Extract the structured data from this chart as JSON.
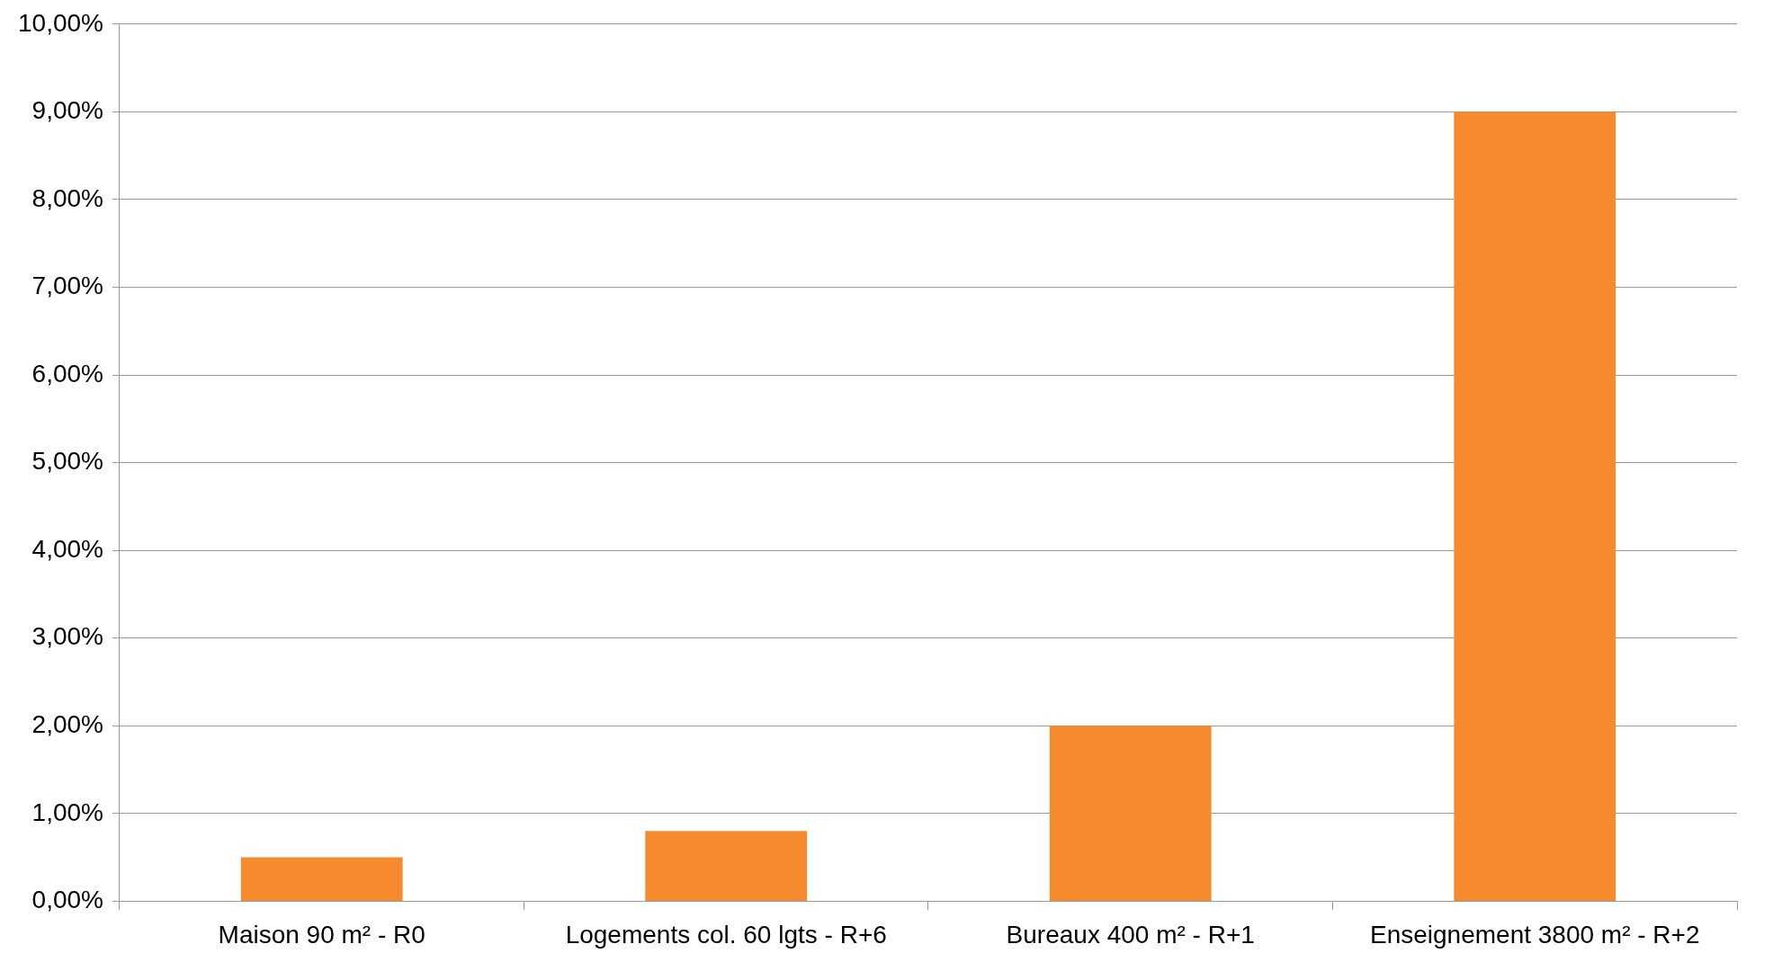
{
  "chart_data": {
    "type": "bar",
    "categories": [
      "Maison 90 m² - R0",
      "Logements col. 60 lgts - R+6",
      "Bureaux 400 m² - R+1",
      "Enseignement 3800 m² - R+2"
    ],
    "values": [
      0.5,
      0.8,
      2.0,
      9.0
    ],
    "color": "#f58b2e",
    "ylim": [
      0,
      10
    ],
    "yticks": [
      {
        "value": 0,
        "label": "0,00%"
      },
      {
        "value": 1,
        "label": "1,00%"
      },
      {
        "value": 2,
        "label": "2,00%"
      },
      {
        "value": 3,
        "label": "3,00%"
      },
      {
        "value": 4,
        "label": "4,00%"
      },
      {
        "value": 5,
        "label": "5,00%"
      },
      {
        "value": 6,
        "label": "6,00%"
      },
      {
        "value": 7,
        "label": "7,00%"
      },
      {
        "value": 8,
        "label": "8,00%"
      },
      {
        "value": 9,
        "label": "9,00%"
      },
      {
        "value": 10,
        "label": "10,00%"
      }
    ],
    "grid": "y"
  }
}
